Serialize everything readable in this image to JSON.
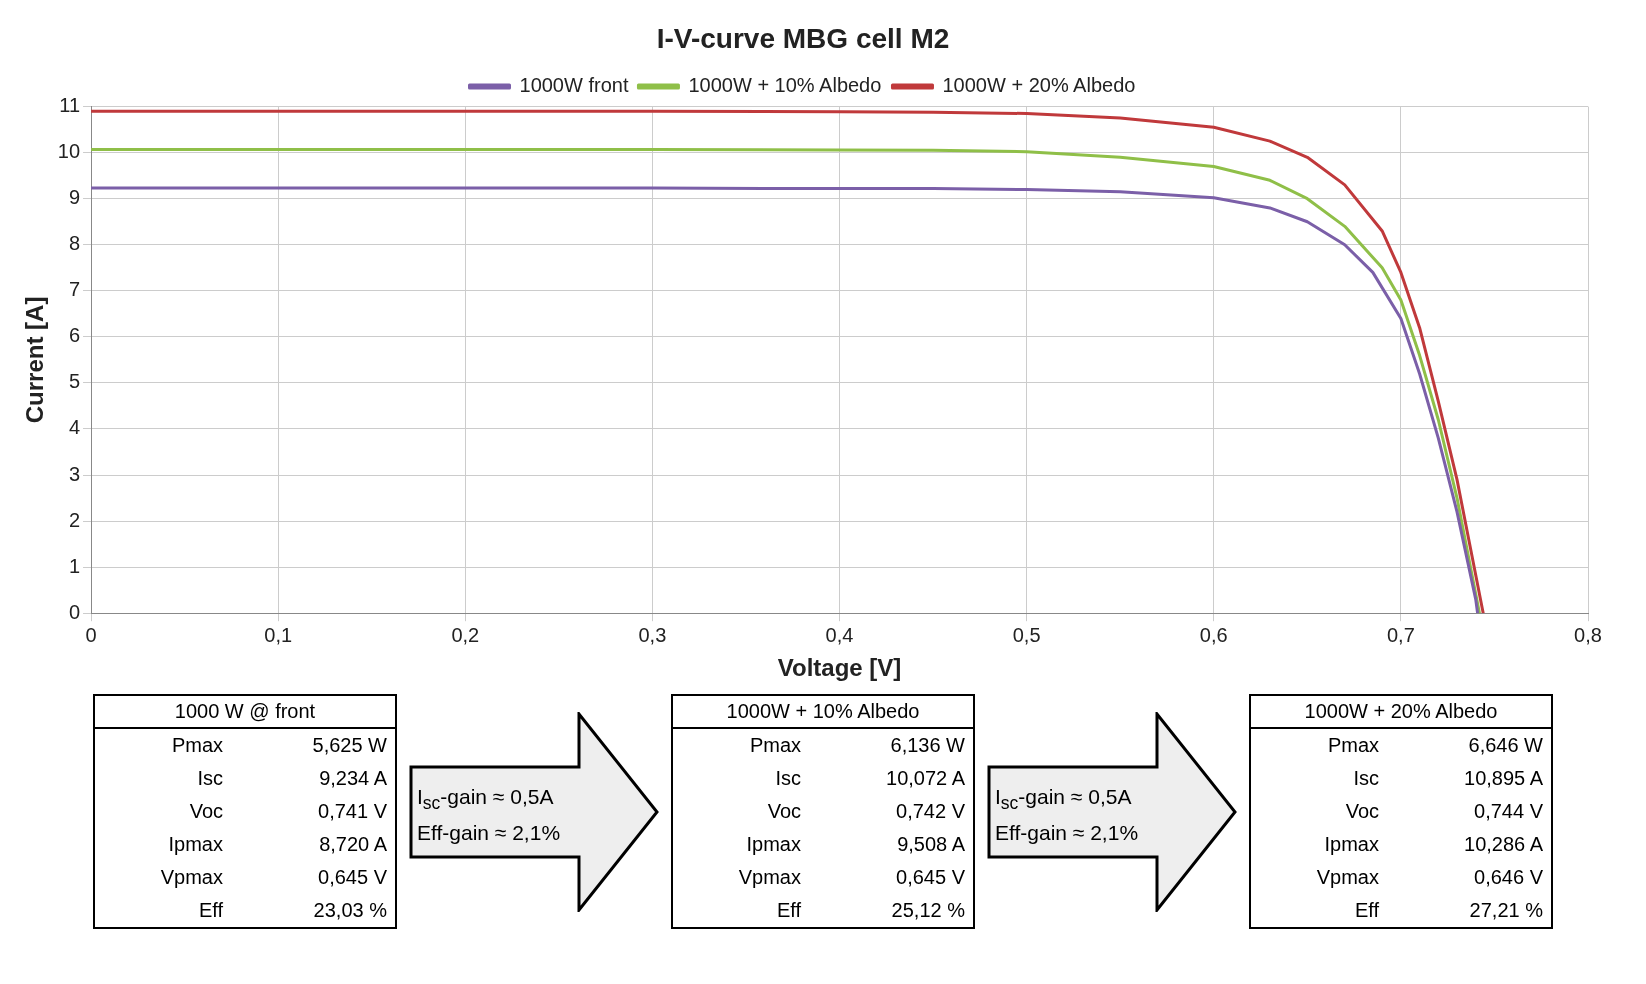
{
  "chart_data": {
    "type": "line",
    "title": "I-V-curve MBG cell M2",
    "xlabel": "Voltage [V]",
    "ylabel": "Current [A]",
    "xlim": [
      0,
      0.8
    ],
    "xticks": [
      {
        "value": 0,
        "label": "0"
      },
      {
        "value": 0.1,
        "label": "0,1"
      },
      {
        "value": 0.2,
        "label": "0,2"
      },
      {
        "value": 0.3,
        "label": "0,3"
      },
      {
        "value": 0.4,
        "label": "0,4"
      },
      {
        "value": 0.5,
        "label": "0,5"
      },
      {
        "value": 0.6,
        "label": "0,6"
      },
      {
        "value": 0.7,
        "label": "0,7"
      },
      {
        "value": 0.8,
        "label": "0,8"
      }
    ],
    "ylim": [
      0,
      11
    ],
    "yticks": [
      0,
      1,
      2,
      3,
      4,
      5,
      6,
      7,
      8,
      9,
      10,
      11
    ],
    "grid": true,
    "legend": "top",
    "marker": "none",
    "line_style": "solid",
    "series": [
      {
        "name": "1000W front",
        "color": "#7b5fa8",
        "x": [
          0,
          0.1,
          0.2,
          0.3,
          0.4,
          0.45,
          0.5,
          0.55,
          0.6,
          0.63,
          0.65,
          0.67,
          0.685,
          0.7,
          0.71,
          0.72,
          0.73,
          0.74,
          0.741
        ],
        "values": [
          9.23,
          9.23,
          9.23,
          9.23,
          9.22,
          9.22,
          9.2,
          9.15,
          9.02,
          8.8,
          8.5,
          8,
          7.4,
          6.4,
          5.2,
          3.8,
          2.2,
          0.3,
          0
        ]
      },
      {
        "name": "1000W + 10% Albedo",
        "color": "#8fbf48",
        "x": [
          0,
          0.1,
          0.2,
          0.3,
          0.4,
          0.45,
          0.5,
          0.55,
          0.6,
          0.63,
          0.65,
          0.67,
          0.69,
          0.7,
          0.71,
          0.72,
          0.73,
          0.742
        ],
        "values": [
          10.07,
          10.07,
          10.07,
          10.07,
          10.06,
          10.05,
          10.02,
          9.9,
          9.7,
          9.4,
          9,
          8.4,
          7.5,
          6.8,
          5.6,
          4.2,
          2.5,
          0
        ]
      },
      {
        "name": "1000W + 20% Albedo",
        "color": "#c0393b",
        "x": [
          0,
          0.1,
          0.2,
          0.3,
          0.4,
          0.45,
          0.5,
          0.55,
          0.6,
          0.63,
          0.65,
          0.67,
          0.69,
          0.7,
          0.71,
          0.72,
          0.73,
          0.744
        ],
        "values": [
          10.9,
          10.9,
          10.9,
          10.9,
          10.89,
          10.88,
          10.85,
          10.75,
          10.55,
          10.25,
          9.9,
          9.3,
          8.3,
          7.4,
          6.2,
          4.6,
          2.9,
          0
        ]
      }
    ],
    "annotations": [
      "1000 W @ front\nPmax\t5,625 W\nIsc\t9,234 A\nVoc\t0,741 V\nIpmax\t8,720 A\nVpmax\t0,645 V\nEff\t23,03 %",
      "I$_{sc}$-gain ≈ 0,5A\nEff-gain ≈ 2,1%",
      "1000W + 10% Albedo\nPmax\t6,136 W\nIsc\t10,072 A\nVoc\t0,742 V\nIpmax\t9,508 A\nVpmax\t0,645 V\nEff\t25,12 %",
      "I$_{sc}$-gain ≈ 0,5A\nEff-gain ≈ 2,1%",
      "1000W + 20% Albedo\nPmax\t6,646 W\nIsc\t10,895 A\nVoc\t0,744 V\nIpmax\t10,286 A\nVpmax\t0,646 V\nEff\t27,21 %"
    ]
  }
}
